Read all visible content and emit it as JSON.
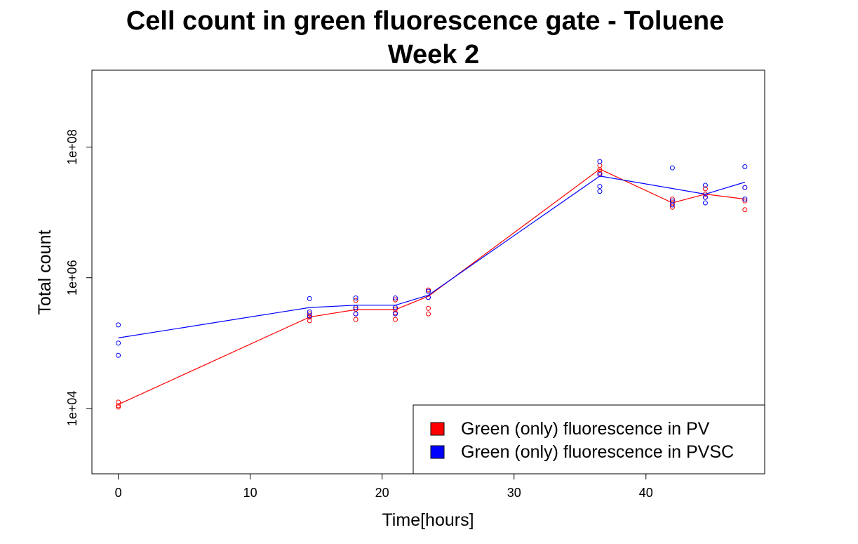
{
  "chart_data": {
    "type": "scatter",
    "title": "Cell count in green fluorescence gate - Toluene",
    "subtitle": "Week 2",
    "xlabel": "Time[hours]",
    "ylabel": "Total count",
    "xlim": [
      -2,
      49
    ],
    "ylim": [
      1000,
      1500000000
    ],
    "y_scale": "log",
    "x_ticks": [
      0,
      10,
      20,
      30,
      40
    ],
    "x_tick_labels": [
      "0",
      "10",
      "20",
      "30",
      "40"
    ],
    "y_ticks": [
      10000,
      1000000,
      100000000
    ],
    "y_tick_labels": [
      "1e+04",
      "1e+06",
      "1e+08"
    ],
    "grid": false,
    "legend_position": "bottom-right",
    "series": [
      {
        "name": "Green (only) fluorescence in PV",
        "color": "#ff0000",
        "points": [
          {
            "x": 0,
            "y": 11000
          },
          {
            "x": 0,
            "y": 12500
          },
          {
            "x": 0,
            "y": 10500
          },
          {
            "x": 14.5,
            "y": 220000
          },
          {
            "x": 14.5,
            "y": 250000
          },
          {
            "x": 14.5,
            "y": 280000
          },
          {
            "x": 18,
            "y": 230000
          },
          {
            "x": 18,
            "y": 280000
          },
          {
            "x": 18,
            "y": 330000
          },
          {
            "x": 18,
            "y": 450000
          },
          {
            "x": 21,
            "y": 230000
          },
          {
            "x": 21,
            "y": 290000
          },
          {
            "x": 21,
            "y": 330000
          },
          {
            "x": 21,
            "y": 460000
          },
          {
            "x": 23.5,
            "y": 280000
          },
          {
            "x": 23.5,
            "y": 340000
          },
          {
            "x": 23.5,
            "y": 500000
          },
          {
            "x": 23.5,
            "y": 650000
          },
          {
            "x": 36.5,
            "y": 40000000
          },
          {
            "x": 36.5,
            "y": 45000000
          },
          {
            "x": 36.5,
            "y": 52000000
          },
          {
            "x": 42,
            "y": 12000000
          },
          {
            "x": 42,
            "y": 14000000
          },
          {
            "x": 42,
            "y": 16000000
          },
          {
            "x": 44.5,
            "y": 17000000
          },
          {
            "x": 44.5,
            "y": 19000000
          },
          {
            "x": 44.5,
            "y": 23000000
          },
          {
            "x": 47.5,
            "y": 11000000
          },
          {
            "x": 47.5,
            "y": 15000000
          },
          {
            "x": 47.5,
            "y": 24000000
          }
        ],
        "line": [
          {
            "x": 0,
            "y": 11500
          },
          {
            "x": 14.5,
            "y": 250000
          },
          {
            "x": 18,
            "y": 325000
          },
          {
            "x": 21,
            "y": 325000
          },
          {
            "x": 23.5,
            "y": 520000
          },
          {
            "x": 36.5,
            "y": 46000000
          },
          {
            "x": 42,
            "y": 14000000
          },
          {
            "x": 44.5,
            "y": 19000000
          },
          {
            "x": 47.5,
            "y": 16000000
          }
        ]
      },
      {
        "name": "Green (only) fluorescence in PVSC",
        "color": "#0000ff",
        "points": [
          {
            "x": 0,
            "y": 190000
          },
          {
            "x": 0,
            "y": 100000
          },
          {
            "x": 0,
            "y": 65000
          },
          {
            "x": 14.5,
            "y": 480000
          },
          {
            "x": 14.5,
            "y": 300000
          },
          {
            "x": 14.5,
            "y": 260000
          },
          {
            "x": 18,
            "y": 490000
          },
          {
            "x": 18,
            "y": 350000
          },
          {
            "x": 18,
            "y": 280000
          },
          {
            "x": 21,
            "y": 490000
          },
          {
            "x": 21,
            "y": 350000
          },
          {
            "x": 21,
            "y": 280000
          },
          {
            "x": 23.5,
            "y": 620000
          },
          {
            "x": 23.5,
            "y": 500000
          },
          {
            "x": 36.5,
            "y": 60000000
          },
          {
            "x": 36.5,
            "y": 38000000
          },
          {
            "x": 36.5,
            "y": 25000000
          },
          {
            "x": 36.5,
            "y": 21000000
          },
          {
            "x": 42,
            "y": 48000000
          },
          {
            "x": 42,
            "y": 15000000
          },
          {
            "x": 42,
            "y": 13000000
          },
          {
            "x": 44.5,
            "y": 26000000
          },
          {
            "x": 44.5,
            "y": 17000000
          },
          {
            "x": 44.5,
            "y": 14000000
          },
          {
            "x": 47.5,
            "y": 50000000
          },
          {
            "x": 47.5,
            "y": 24000000
          },
          {
            "x": 47.5,
            "y": 16000000
          }
        ],
        "line": [
          {
            "x": 0,
            "y": 120000
          },
          {
            "x": 14.5,
            "y": 350000
          },
          {
            "x": 18,
            "y": 380000
          },
          {
            "x": 21,
            "y": 380000
          },
          {
            "x": 23.5,
            "y": 540000
          },
          {
            "x": 36.5,
            "y": 36000000
          },
          {
            "x": 44.5,
            "y": 19000000
          },
          {
            "x": 47.5,
            "y": 29000000
          }
        ]
      }
    ]
  }
}
